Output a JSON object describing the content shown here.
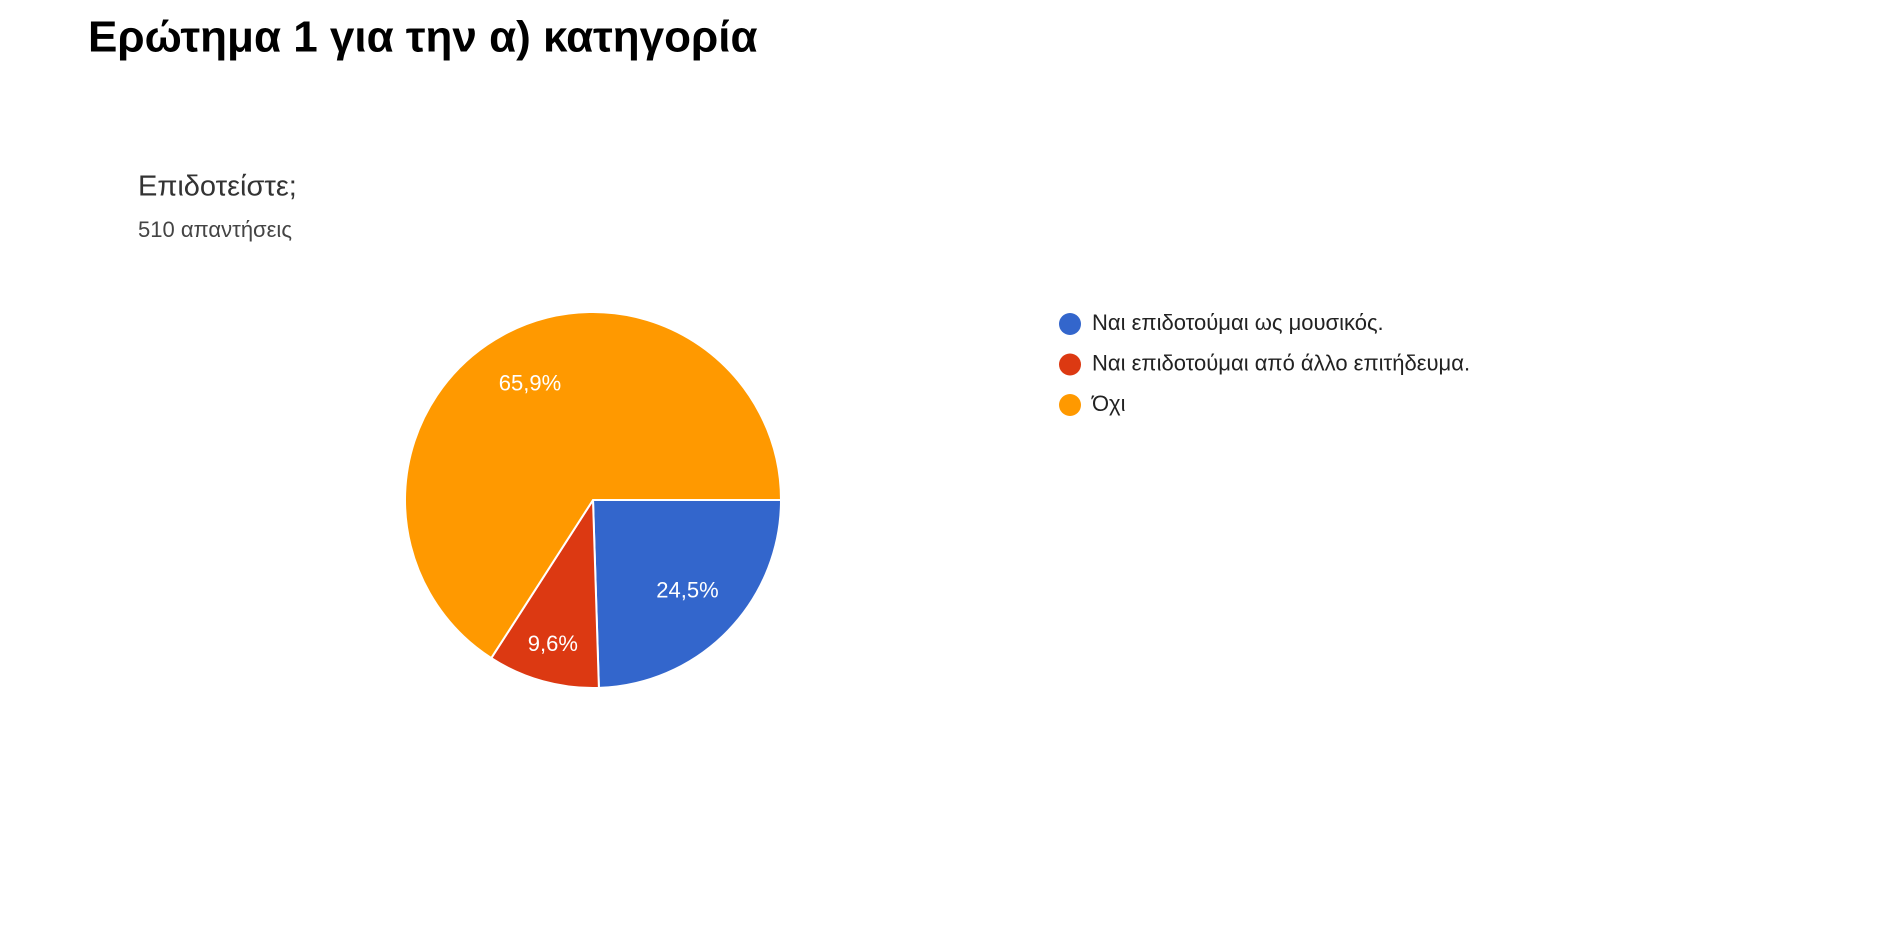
{
  "header": {
    "title": "Ερώτημα 1 για την α) κατηγορία"
  },
  "chart_data": {
    "type": "pie",
    "title": "Επιδοτείστε;",
    "subtitle": "510 απαντήσεις",
    "categories": [
      "Ναι επιδοτούμαι ως μουσικός.",
      "Ναι επιδοτούμαι από άλλο επιτήδευμα.",
      "Όχι"
    ],
    "values": [
      24.5,
      9.6,
      65.9
    ],
    "value_labels": [
      "24,5%",
      "9,6%",
      "65,9%"
    ],
    "colors": [
      "#3366cc",
      "#dc3912",
      "#ff9900"
    ],
    "legend": "right"
  }
}
